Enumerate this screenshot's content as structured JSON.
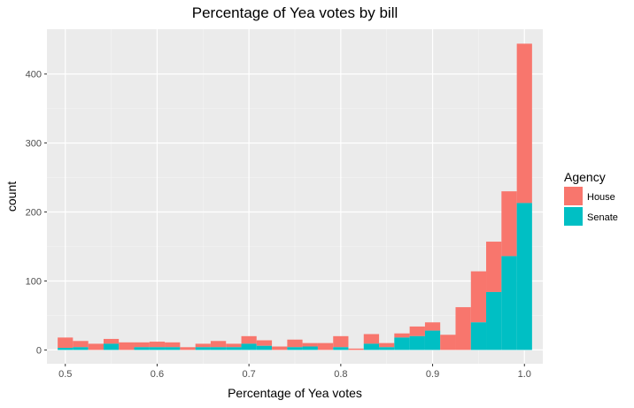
{
  "chart_data": {
    "type": "bar",
    "subtype": "stacked-histogram",
    "title": "Percentage of Yea votes by bill",
    "xlabel": "Percentage of Yea votes",
    "ylabel": "count",
    "xlim": [
      0.48,
      1.02
    ],
    "ylim": [
      -20,
      465
    ],
    "x_ticks": [
      "0.5",
      "0.6",
      "0.7",
      "0.8",
      "0.9",
      "1.0"
    ],
    "y_ticks": [
      "0",
      "100",
      "200",
      "300",
      "400"
    ],
    "grid": true,
    "legend": {
      "title": "Agency",
      "placement": "right"
    },
    "bin_edges": [
      0.4917,
      0.5083,
      0.525,
      0.5417,
      0.5583,
      0.575,
      0.5917,
      0.6083,
      0.625,
      0.6417,
      0.6583,
      0.675,
      0.6917,
      0.7083,
      0.725,
      0.7417,
      0.7583,
      0.775,
      0.7917,
      0.8083,
      0.825,
      0.8417,
      0.8583,
      0.875,
      0.8917,
      0.9083,
      0.925,
      0.9417,
      0.9583,
      0.975,
      0.9917,
      1.0083
    ],
    "series": [
      {
        "name": "Senate",
        "color": "#00BFC4",
        "values": [
          3,
          4,
          0,
          9,
          0,
          4,
          4,
          4,
          0,
          4,
          4,
          4,
          9,
          6,
          0,
          4,
          5,
          0,
          4,
          0,
          9,
          4,
          18,
          20,
          28,
          0,
          0,
          40,
          84,
          136,
          213
        ]
      },
      {
        "name": "House",
        "color": "#F8766D",
        "values": [
          15,
          9,
          9,
          7,
          11,
          7,
          8,
          7,
          4,
          5,
          9,
          5,
          11,
          8,
          5,
          11,
          5,
          10,
          16,
          2,
          14,
          6,
          6,
          14,
          12,
          22,
          62,
          74,
          73,
          94,
          231
        ]
      }
    ]
  }
}
